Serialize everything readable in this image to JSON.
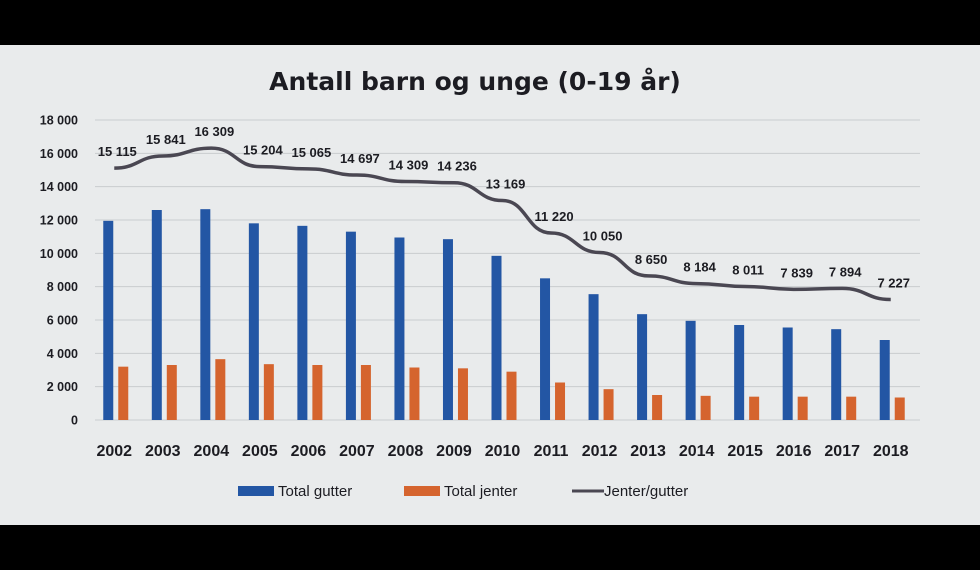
{
  "chart_data": {
    "type": "bar",
    "title": "Antall barn og unge (0-19 år)",
    "categories": [
      "2002",
      "2003",
      "2004",
      "2005",
      "2006",
      "2007",
      "2008",
      "2009",
      "2010",
      "2011",
      "2012",
      "2013",
      "2014",
      "2015",
      "2016",
      "2017",
      "2018"
    ],
    "y_ticks": [
      "18 000",
      "16 000",
      "14 000",
      "12 000",
      "10 000",
      "8 000",
      "6 000",
      "4 000",
      "2 000",
      "0"
    ],
    "ylim": [
      0,
      18000
    ],
    "grid": true,
    "legend_position": "bottom",
    "series": [
      {
        "name": "Total gutter",
        "type": "bar",
        "color": "#2356a4",
        "values": [
          11950,
          12600,
          12650,
          11800,
          11650,
          11300,
          10950,
          10850,
          9850,
          8500,
          7550,
          6350,
          5950,
          5700,
          5550,
          5450,
          4800
        ]
      },
      {
        "name": "Total jenter",
        "type": "bar",
        "color": "#d5642e",
        "values": [
          3200,
          3300,
          3650,
          3350,
          3300,
          3300,
          3150,
          3100,
          2900,
          2250,
          1850,
          1500,
          1450,
          1400,
          1400,
          1400,
          1350
        ]
      },
      {
        "name": "Jenter/gutter",
        "type": "line",
        "color": "#4a4752",
        "values": [
          15115,
          15841,
          16309,
          15204,
          15065,
          14697,
          14309,
          14236,
          13169,
          11220,
          10050,
          8650,
          8184,
          8011,
          7839,
          7894,
          7227
        ],
        "labels": [
          "15 115",
          "15 841",
          "16 309",
          "15 204",
          "15 065",
          "14 697",
          "14 309",
          "14 236",
          "13 169",
          "11 220",
          "10 050",
          "8 650",
          "8 184",
          "8 011",
          "7 839",
          "7 894",
          "7 227"
        ]
      }
    ]
  }
}
